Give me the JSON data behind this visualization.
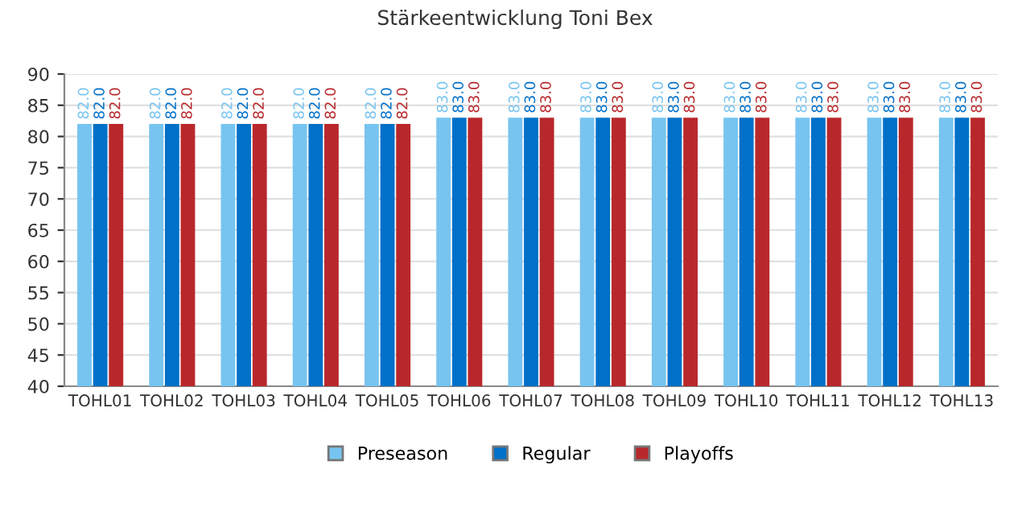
{
  "chart_data": {
    "type": "bar",
    "title": "Stärkeentwicklung Toni Bex",
    "categories": [
      "TOHL01",
      "TOHL02",
      "TOHL03",
      "TOHL04",
      "TOHL05",
      "TOHL06",
      "TOHL07",
      "TOHL08",
      "TOHL09",
      "TOHL10",
      "TOHL11",
      "TOHL12",
      "TOHL13"
    ],
    "series": [
      {
        "name": "Preseason",
        "color": "#77c4f0",
        "values": [
          82,
          82,
          82,
          82,
          82,
          83,
          83,
          83,
          83,
          83,
          83,
          83,
          83
        ],
        "value_labels": [
          "82.0",
          "82.0",
          "82.0",
          "82.0",
          "82.0",
          "83.0",
          "83.0",
          "83.0",
          "83.0",
          "83.0",
          "83.0",
          "83.0",
          "83.0"
        ]
      },
      {
        "name": "Regular",
        "color": "#0070c8",
        "values": [
          82,
          82,
          82,
          82,
          82,
          83,
          83,
          83,
          83,
          83,
          83,
          83,
          83
        ],
        "value_labels": [
          "82.0",
          "82.0",
          "82.0",
          "82.0",
          "82.0",
          "83.0",
          "83.0",
          "83.0",
          "83.0",
          "83.0",
          "83.0",
          "83.0",
          "83.0"
        ]
      },
      {
        "name": "Playoffs",
        "color": "#b8282b",
        "values": [
          82,
          82,
          82,
          82,
          82,
          83,
          83,
          83,
          83,
          83,
          83,
          83,
          83
        ],
        "value_labels": [
          "82.0",
          "82.0",
          "82.0",
          "82.0",
          "82.0",
          "83.0",
          "83.0",
          "83.0",
          "83.0",
          "83.0",
          "83.0",
          "83.0",
          "83.0"
        ]
      }
    ],
    "ylim": [
      40,
      90
    ],
    "yticks": [
      40,
      45,
      50,
      55,
      60,
      65,
      70,
      75,
      80,
      85,
      90
    ],
    "grid": "y",
    "legend": "bottom"
  }
}
